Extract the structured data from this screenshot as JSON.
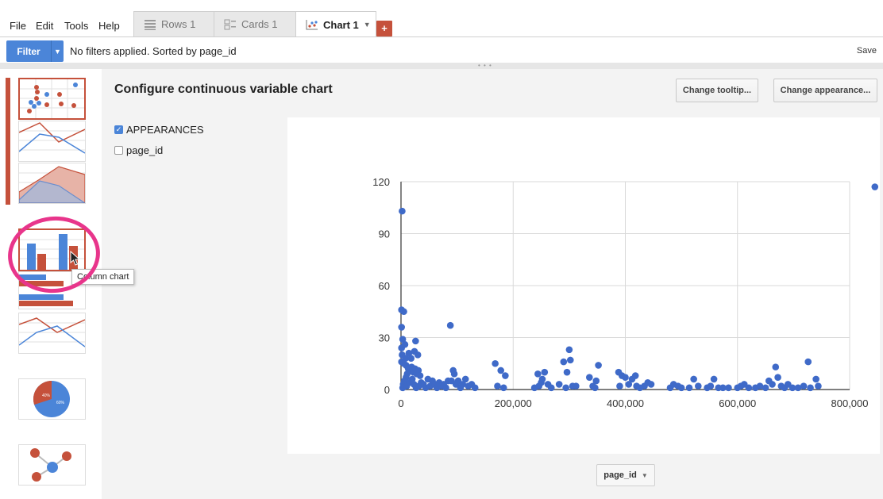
{
  "menu": [
    "File",
    "Edit",
    "Tools",
    "Help"
  ],
  "tabs": [
    {
      "label": "Rows 1",
      "icon": "rows-icon"
    },
    {
      "label": "Cards 1",
      "icon": "cards-icon"
    },
    {
      "label": "Chart 1",
      "icon": "scatter-chart-icon",
      "active": true
    }
  ],
  "add_tab": "+",
  "filter": {
    "button_label": "Filter",
    "status": "No filters applied. Sorted by page_id",
    "save_label": "Save"
  },
  "gallery": {
    "tooltip": "Column chart",
    "pie_labels": [
      "40%",
      "60%"
    ]
  },
  "config": {
    "title": "Configure continuous variable chart",
    "change_tooltip_label": "Change tooltip...",
    "change_appearance_label": "Change appearance...",
    "variables": [
      {
        "label": "APPEARANCES",
        "checked": true
      },
      {
        "label": "page_id",
        "checked": false
      }
    ],
    "x_axis_select": "page_id"
  },
  "colors": {
    "accent_blue": "#4b85d8",
    "accent_red": "#c5513b",
    "highlight_pink": "#e8358b",
    "point_blue": "#3f6ac8"
  },
  "chart_data": {
    "type": "scatter",
    "title": "",
    "xlabel": "",
    "ylabel": "",
    "xlim": [
      0,
      800000
    ],
    "ylim": [
      0,
      120
    ],
    "x_ticks": [
      0,
      200000,
      400000,
      600000,
      800000
    ],
    "x_tick_labels": [
      "0",
      "200,000",
      "400,000",
      "600,000",
      "800,000"
    ],
    "y_ticks": [
      0,
      30,
      60,
      90,
      120
    ],
    "y_tick_labels": [
      "0",
      "30",
      "60",
      "90",
      "120"
    ],
    "grid": true,
    "series": [
      {
        "color": "#3f6ac8",
        "points": [
          [
            2000,
            103
          ],
          [
            1000,
            46
          ],
          [
            5000,
            45
          ],
          [
            1000,
            36
          ],
          [
            3000,
            29
          ],
          [
            1000,
            24
          ],
          [
            7000,
            26
          ],
          [
            2000,
            20
          ],
          [
            8000,
            18
          ],
          [
            1000,
            16
          ],
          [
            5000,
            15
          ],
          [
            9000,
            14
          ],
          [
            13000,
            12
          ],
          [
            16000,
            11
          ],
          [
            19000,
            13
          ],
          [
            22000,
            10
          ],
          [
            25000,
            12
          ],
          [
            28000,
            9
          ],
          [
            31000,
            11
          ],
          [
            34000,
            8
          ],
          [
            26000,
            28
          ],
          [
            24000,
            22
          ],
          [
            30000,
            20
          ],
          [
            18000,
            18
          ],
          [
            14000,
            21
          ],
          [
            11000,
            9
          ],
          [
            9000,
            7
          ],
          [
            6000,
            5
          ],
          [
            4000,
            3
          ],
          [
            3000,
            1
          ],
          [
            10000,
            2
          ],
          [
            15000,
            4
          ],
          [
            20000,
            6
          ],
          [
            23000,
            3
          ],
          [
            27000,
            1
          ],
          [
            32000,
            2
          ],
          [
            36000,
            4
          ],
          [
            40000,
            3
          ],
          [
            44000,
            1
          ],
          [
            48000,
            6
          ],
          [
            52000,
            2
          ],
          [
            56000,
            5
          ],
          [
            60000,
            3
          ],
          [
            64000,
            1
          ],
          [
            68000,
            4
          ],
          [
            72000,
            2
          ],
          [
            76000,
            3
          ],
          [
            80000,
            1
          ],
          [
            84000,
            5
          ],
          [
            88000,
            37
          ],
          [
            90000,
            5
          ],
          [
            93000,
            11
          ],
          [
            95000,
            9
          ],
          [
            98000,
            3
          ],
          [
            102000,
            5
          ],
          [
            106000,
            1
          ],
          [
            110000,
            3
          ],
          [
            115000,
            6
          ],
          [
            120000,
            2
          ],
          [
            126000,
            3
          ],
          [
            132000,
            1
          ],
          [
            168000,
            15
          ],
          [
            178000,
            11
          ],
          [
            186000,
            8
          ],
          [
            172000,
            2
          ],
          [
            183000,
            1
          ],
          [
            238000,
            1
          ],
          [
            244000,
            9
          ],
          [
            250000,
            4
          ],
          [
            256000,
            10
          ],
          [
            262000,
            3
          ],
          [
            268000,
            1
          ],
          [
            246000,
            2
          ],
          [
            252000,
            6
          ],
          [
            282000,
            3
          ],
          [
            290000,
            16
          ],
          [
            296000,
            10
          ],
          [
            300000,
            23
          ],
          [
            302000,
            17
          ],
          [
            306000,
            2
          ],
          [
            312000,
            2
          ],
          [
            294000,
            1
          ],
          [
            336000,
            7
          ],
          [
            342000,
            2
          ],
          [
            348000,
            5
          ],
          [
            352000,
            14
          ],
          [
            346000,
            1
          ],
          [
            388000,
            10
          ],
          [
            394000,
            8
          ],
          [
            400000,
            7
          ],
          [
            406000,
            3
          ],
          [
            412000,
            6
          ],
          [
            418000,
            8
          ],
          [
            420000,
            2
          ],
          [
            426000,
            1
          ],
          [
            434000,
            2
          ],
          [
            440000,
            4
          ],
          [
            446000,
            3
          ],
          [
            390000,
            2
          ],
          [
            480000,
            1
          ],
          [
            486000,
            3
          ],
          [
            494000,
            2
          ],
          [
            500000,
            1
          ],
          [
            514000,
            1
          ],
          [
            522000,
            6
          ],
          [
            530000,
            2
          ],
          [
            546000,
            1
          ],
          [
            552000,
            2
          ],
          [
            558000,
            6
          ],
          [
            566000,
            1
          ],
          [
            574000,
            1
          ],
          [
            584000,
            1
          ],
          [
            600000,
            1
          ],
          [
            606000,
            2
          ],
          [
            612000,
            3
          ],
          [
            620000,
            1
          ],
          [
            632000,
            1
          ],
          [
            640000,
            2
          ],
          [
            650000,
            1
          ],
          [
            656000,
            5
          ],
          [
            662000,
            3
          ],
          [
            668000,
            13
          ],
          [
            672000,
            7
          ],
          [
            678000,
            2
          ],
          [
            684000,
            1
          ],
          [
            690000,
            3
          ],
          [
            698000,
            1
          ],
          [
            708000,
            1
          ],
          [
            718000,
            2
          ],
          [
            726000,
            16
          ],
          [
            730000,
            1
          ],
          [
            740000,
            6
          ],
          [
            744000,
            2
          ],
          [
            845000,
            117
          ]
        ]
      }
    ]
  }
}
